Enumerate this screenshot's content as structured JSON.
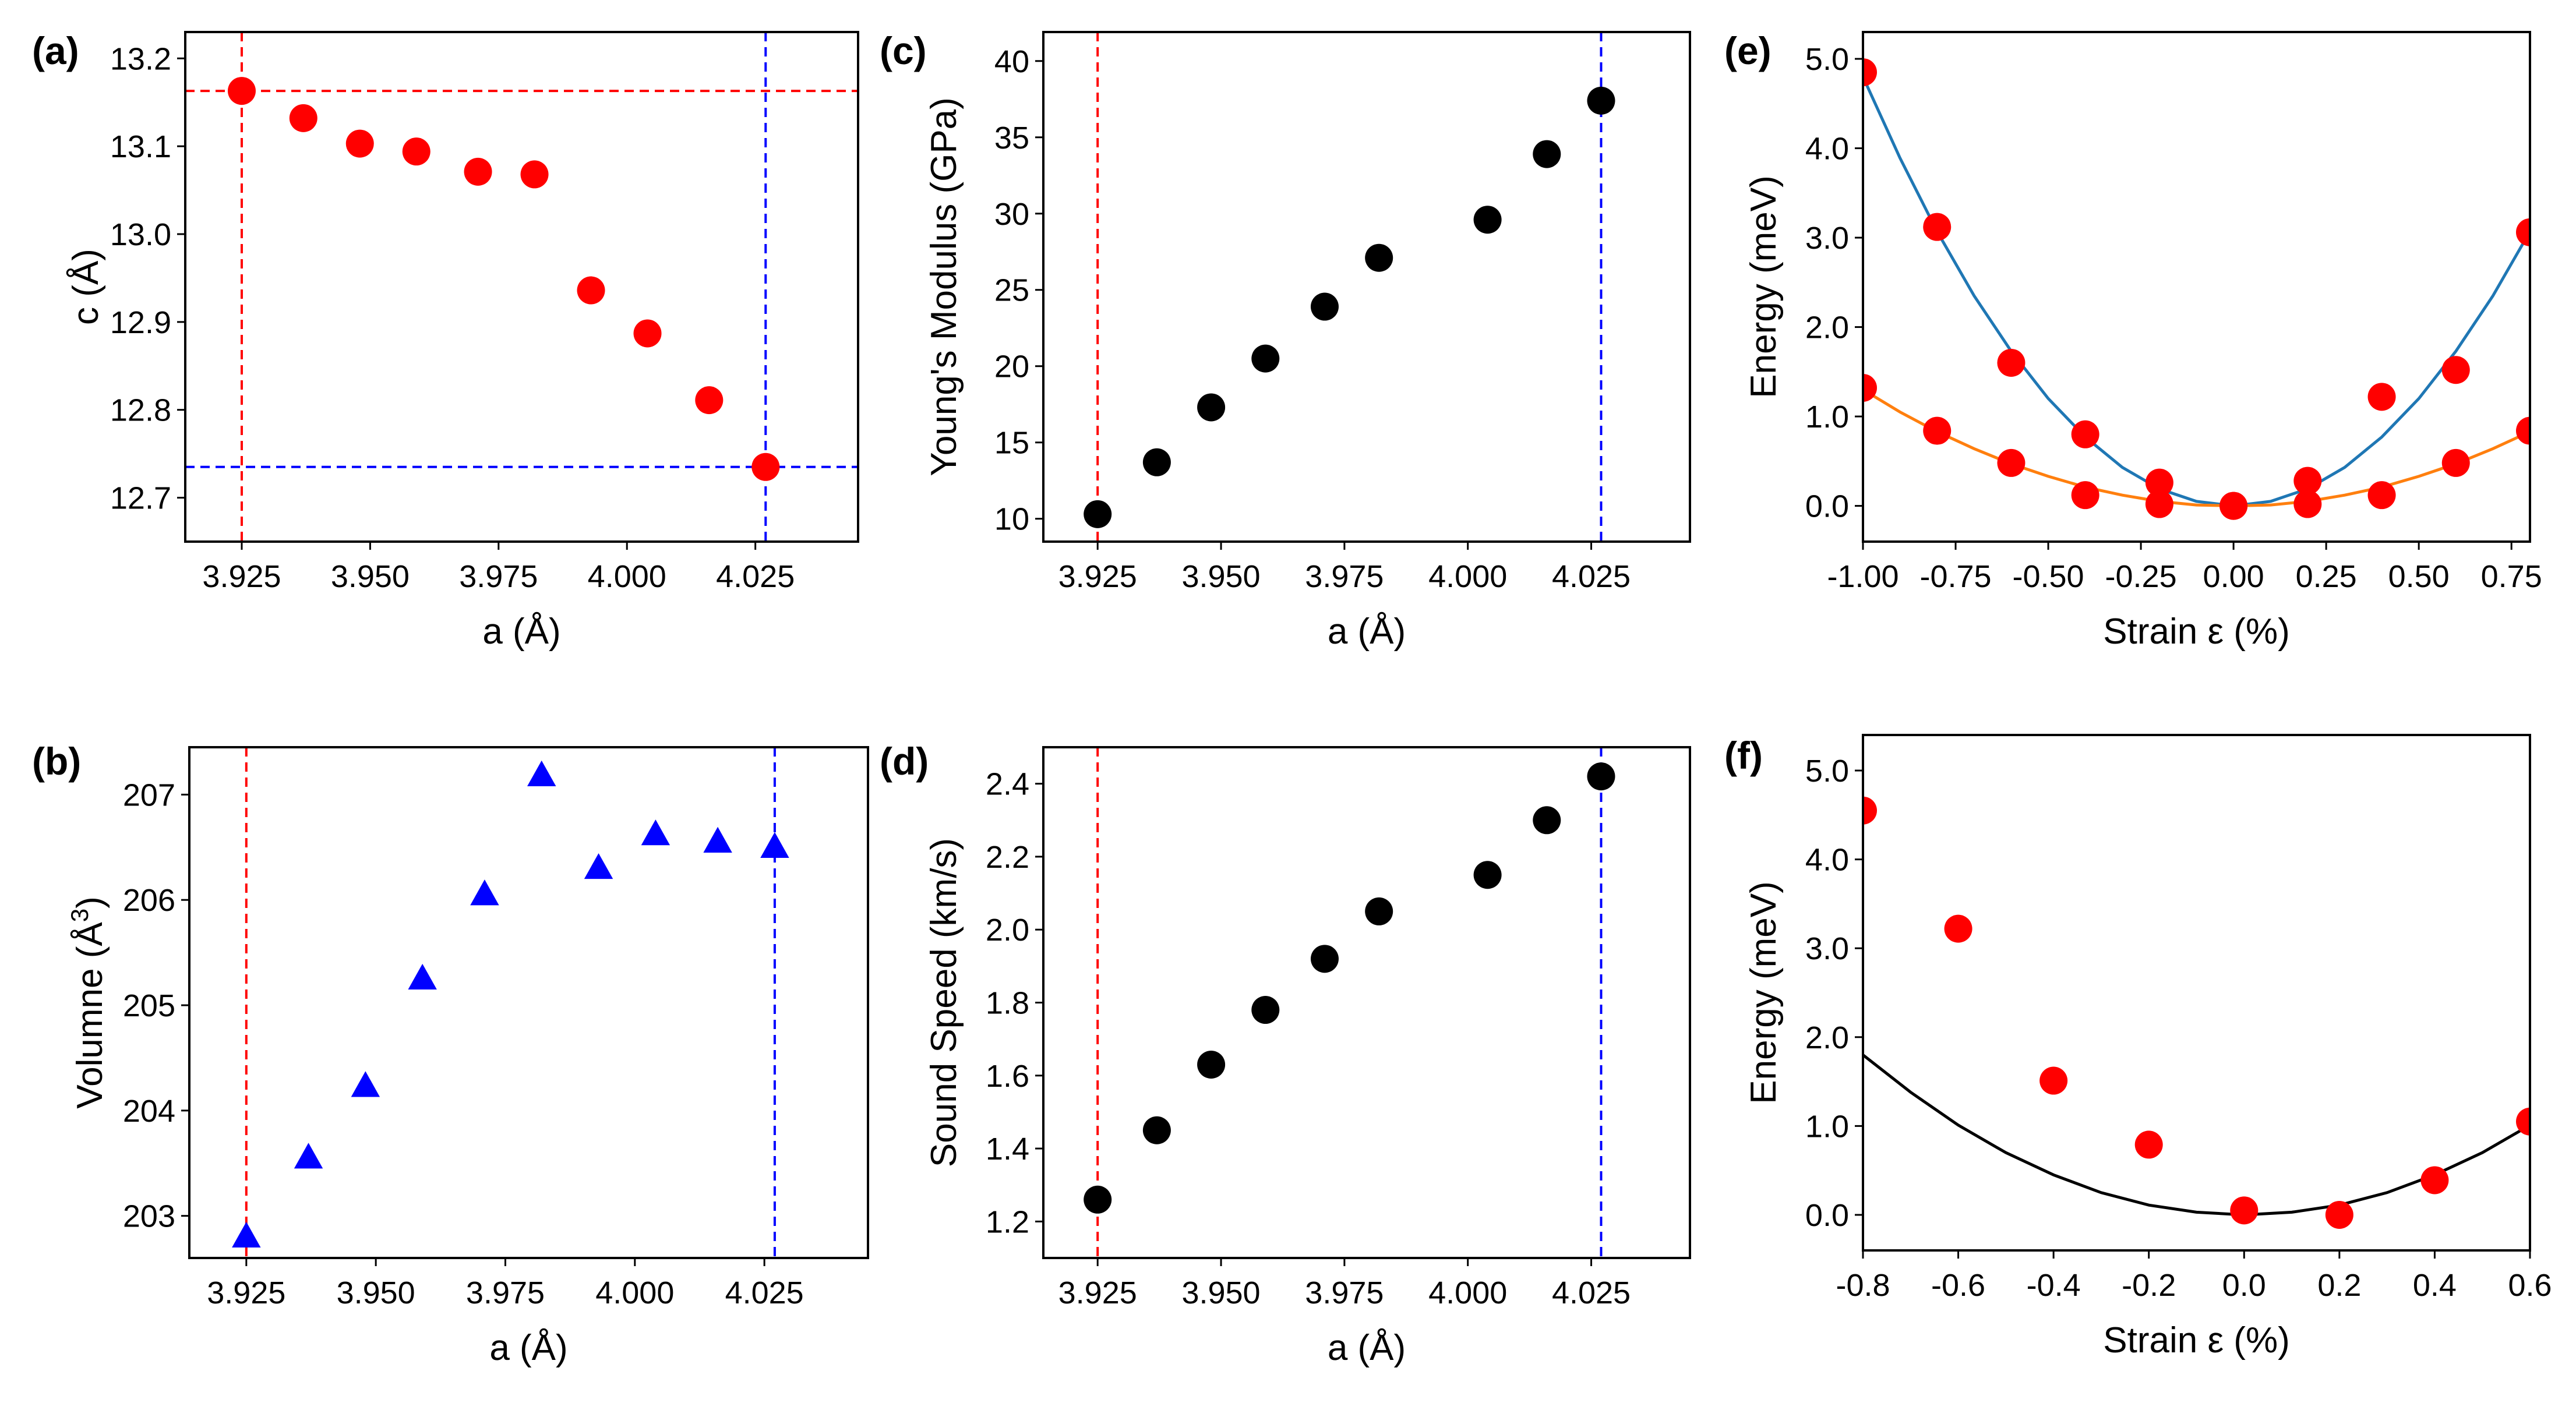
{
  "chart_data": [
    {
      "panel_label": "(a)",
      "type": "scatter",
      "xlabel": "a (Å)",
      "ylabel": "c (Å)",
      "xlim": [
        3.914,
        4.045
      ],
      "ylim": [
        12.65,
        13.23
      ],
      "xticks": [
        3.925,
        3.95,
        3.975,
        4.0,
        4.025
      ],
      "xtick_labels": [
        "3.925",
        "3.950",
        "3.975",
        "4.000",
        "4.025"
      ],
      "yticks": [
        12.7,
        12.8,
        12.9,
        13.0,
        13.1,
        13.2
      ],
      "ytick_labels": [
        "12.7",
        "12.8",
        "12.9",
        "13.0",
        "13.1",
        "13.2"
      ],
      "marker": "circle",
      "color": "#ff0000",
      "x": [
        3.925,
        3.937,
        3.948,
        3.959,
        3.971,
        3.982,
        3.993,
        4.004,
        4.016,
        4.027
      ],
      "y": [
        13.163,
        13.132,
        13.103,
        13.094,
        13.071,
        13.068,
        12.936,
        12.887,
        12.811,
        12.735
      ],
      "hlines": [
        {
          "y": 13.163,
          "color": "#ff0000"
        },
        {
          "y": 12.735,
          "color": "#0000ff"
        }
      ],
      "vlines": [
        {
          "x": 3.925,
          "color": "#ff0000"
        },
        {
          "x": 4.027,
          "color": "#0000ff"
        }
      ]
    },
    {
      "panel_label": "(b)",
      "type": "scatter",
      "xlabel": "a (Å)",
      "ylabel": "Volumne (Å3)",
      "xlim": [
        3.914,
        4.045
      ],
      "ylim": [
        202.6,
        207.45
      ],
      "xticks": [
        3.925,
        3.95,
        3.975,
        4.0,
        4.025
      ],
      "xtick_labels": [
        "3.925",
        "3.950",
        "3.975",
        "4.000",
        "4.025"
      ],
      "yticks": [
        203,
        204,
        205,
        206,
        207
      ],
      "ytick_labels": [
        "203",
        "204",
        "205",
        "206",
        "207"
      ],
      "marker": "triangle",
      "color": "#0000ff",
      "x": [
        3.925,
        3.937,
        3.948,
        3.959,
        3.971,
        3.982,
        3.993,
        4.004,
        4.016,
        4.027
      ],
      "y": [
        202.8,
        203.55,
        204.23,
        205.25,
        206.05,
        207.18,
        206.3,
        206.62,
        206.55,
        206.5
      ],
      "hlines": [],
      "vlines": [
        {
          "x": 3.925,
          "color": "#ff0000"
        },
        {
          "x": 4.027,
          "color": "#0000ff"
        }
      ]
    },
    {
      "panel_label": "(c)",
      "type": "scatter",
      "xlabel": "a (Å)",
      "ylabel": "Young's Modulus (GPa)",
      "xlim": [
        3.914,
        4.045
      ],
      "ylim": [
        8.5,
        41.9
      ],
      "xticks": [
        3.925,
        3.95,
        3.975,
        4.0,
        4.025
      ],
      "xtick_labels": [
        "3.925",
        "3.950",
        "3.975",
        "4.000",
        "4.025"
      ],
      "yticks": [
        10,
        15,
        20,
        25,
        30,
        35,
        40
      ],
      "ytick_labels": [
        "10",
        "15",
        "20",
        "25",
        "30",
        "35",
        "40"
      ],
      "marker": "circle",
      "color": "#000000",
      "x": [
        3.925,
        3.937,
        3.948,
        3.959,
        3.971,
        3.982,
        4.004,
        4.016,
        4.027
      ],
      "y": [
        10.3,
        13.7,
        17.3,
        20.5,
        23.9,
        27.1,
        29.6,
        33.9,
        37.4
      ],
      "hlines": [],
      "vlines": [
        {
          "x": 3.925,
          "color": "#ff0000"
        },
        {
          "x": 4.027,
          "color": "#0000ff"
        }
      ]
    },
    {
      "panel_label": "(d)",
      "type": "scatter",
      "xlabel": "a (Å)",
      "ylabel": "Sound Speed (km/s)",
      "xlim": [
        3.914,
        4.045
      ],
      "ylim": [
        1.1,
        2.5
      ],
      "xticks": [
        3.925,
        3.95,
        3.975,
        4.0,
        4.025
      ],
      "xtick_labels": [
        "3.925",
        "3.950",
        "3.975",
        "4.000",
        "4.025"
      ],
      "yticks": [
        1.2,
        1.4,
        1.6,
        1.8,
        2.0,
        2.2,
        2.4
      ],
      "ytick_labels": [
        "1.2",
        "1.4",
        "1.6",
        "1.8",
        "2.0",
        "2.2",
        "2.4"
      ],
      "marker": "circle",
      "color": "#000000",
      "x": [
        3.925,
        3.937,
        3.948,
        3.959,
        3.971,
        3.982,
        4.004,
        4.016,
        4.027
      ],
      "y": [
        1.26,
        1.45,
        1.63,
        1.78,
        1.92,
        2.05,
        2.15,
        2.3,
        2.42
      ],
      "hlines": [],
      "vlines": [
        {
          "x": 3.925,
          "color": "#ff0000"
        },
        {
          "x": 4.027,
          "color": "#0000ff"
        }
      ]
    },
    {
      "panel_label": "(e)",
      "type": "scatter",
      "xlabel": "Strain ε (%)",
      "ylabel": "Energy (meV)",
      "xlim": [
        -1.0,
        0.8
      ],
      "ylim": [
        -0.4,
        5.3
      ],
      "xticks": [
        -1.0,
        -0.75,
        -0.5,
        -0.25,
        0.0,
        0.25,
        0.5,
        0.75
      ],
      "xtick_labels": [
        "-1.00",
        "-0.75",
        "-0.50",
        "-0.25",
        "0.00",
        "0.25",
        "0.50",
        "0.75"
      ],
      "yticks": [
        0,
        1,
        2,
        3,
        4,
        5
      ],
      "ytick_labels": [
        "0.0",
        "1.0",
        "2.0",
        "3.0",
        "4.0",
        "5.0"
      ],
      "marker": "circle",
      "color": "#ff0000",
      "x": [
        -1.0,
        -0.8,
        -0.6,
        -0.4,
        -0.2,
        0.0,
        0.2,
        0.4,
        0.6,
        0.8,
        -1.0,
        -0.8,
        -0.6,
        -0.4,
        -0.2,
        0.0,
        0.2,
        0.4,
        0.6,
        0.8
      ],
      "y": [
        4.85,
        3.12,
        1.6,
        0.8,
        0.26,
        0.0,
        0.28,
        1.22,
        1.52,
        3.06,
        1.32,
        0.84,
        0.48,
        0.12,
        0.02,
        0.0,
        0.02,
        0.12,
        0.48,
        0.84
      ],
      "series": [
        {
          "color": "#1f77b4",
          "x": [
            -1.0,
            -0.9,
            -0.8,
            -0.7,
            -0.6,
            -0.5,
            -0.4,
            -0.3,
            -0.2,
            -0.1,
            0.0,
            0.1,
            0.2,
            0.3,
            0.4,
            0.5,
            0.6,
            0.7,
            0.8
          ],
          "y": [
            4.8,
            3.89,
            3.07,
            2.35,
            1.73,
            1.2,
            0.77,
            0.43,
            0.19,
            0.05,
            0.0,
            0.05,
            0.19,
            0.43,
            0.77,
            1.2,
            1.73,
            2.35,
            3.07
          ]
        },
        {
          "color": "#ff7f0e",
          "x": [
            -1.0,
            -0.9,
            -0.8,
            -0.7,
            -0.6,
            -0.5,
            -0.4,
            -0.3,
            -0.2,
            -0.1,
            0.0,
            0.1,
            0.2,
            0.3,
            0.4,
            0.5,
            0.6,
            0.7,
            0.8
          ],
          "y": [
            1.3,
            1.05,
            0.83,
            0.64,
            0.47,
            0.33,
            0.21,
            0.12,
            0.05,
            0.01,
            0.0,
            0.01,
            0.05,
            0.12,
            0.21,
            0.33,
            0.47,
            0.64,
            0.83
          ]
        }
      ],
      "hlines": [],
      "vlines": []
    },
    {
      "panel_label": "(f)",
      "type": "scatter",
      "xlabel": "Strain ε (%)",
      "ylabel": "Energy (meV)",
      "xlim": [
        -0.8,
        0.6
      ],
      "ylim": [
        -0.4,
        5.4
      ],
      "xticks": [
        -0.8,
        -0.6,
        -0.4,
        -0.2,
        0.0,
        0.2,
        0.4,
        0.6
      ],
      "xtick_labels": [
        "-0.8",
        "-0.6",
        "-0.4",
        "-0.2",
        "0.0",
        "0.2",
        "0.4",
        "0.6"
      ],
      "yticks": [
        0,
        1,
        2,
        3,
        4,
        5
      ],
      "ytick_labels": [
        "0.0",
        "1.0",
        "2.0",
        "3.0",
        "4.0",
        "5.0"
      ],
      "marker": "circle",
      "color": "#ff0000",
      "x": [
        -0.8,
        -0.6,
        -0.4,
        -0.2,
        0.0,
        0.2,
        0.4,
        0.6
      ],
      "y": [
        4.55,
        3.22,
        1.51,
        0.79,
        0.05,
        0.0,
        0.39,
        1.05
      ],
      "series": [
        {
          "color": "#000000",
          "x": [
            -0.8,
            -0.7,
            -0.6,
            -0.5,
            -0.4,
            -0.3,
            -0.2,
            -0.1,
            0.0,
            0.1,
            0.2,
            0.3,
            0.4,
            0.5,
            0.6
          ],
          "y": [
            1.8,
            1.38,
            1.01,
            0.7,
            0.45,
            0.25,
            0.11,
            0.03,
            0.0,
            0.03,
            0.11,
            0.25,
            0.45,
            0.7,
            1.01
          ]
        }
      ],
      "hlines": [],
      "vlines": []
    }
  ]
}
